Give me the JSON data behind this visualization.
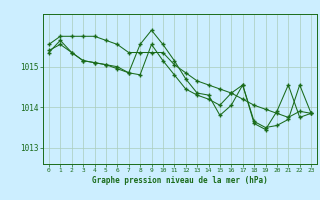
{
  "title": "Graphe pression niveau de la mer (hPa)",
  "bg_color": "#cceeff",
  "plot_bg_color": "#cceeff",
  "grid_color": "#aaccbb",
  "line_color": "#1a6b1a",
  "marker_color": "#1a6b1a",
  "xlabel": "Graphe pression niveau de la mer (hPa)",
  "xlim": [
    -0.5,
    23.5
  ],
  "ylim": [
    1012.6,
    1016.3
  ],
  "yticks": [
    1013,
    1014,
    1015
  ],
  "xticks": [
    0,
    1,
    2,
    3,
    4,
    5,
    6,
    7,
    8,
    9,
    10,
    11,
    12,
    13,
    14,
    15,
    16,
    17,
    18,
    19,
    20,
    21,
    22,
    23
  ],
  "series": [
    [
      1015.55,
      1015.75,
      1015.75,
      1015.75,
      1015.75,
      1015.65,
      1015.55,
      1015.35,
      1015.35,
      1015.35,
      1015.35,
      1015.05,
      1014.85,
      1014.65,
      1014.55,
      1014.45,
      1014.35,
      1014.2,
      1014.05,
      1013.95,
      1013.85,
      1013.75,
      1013.9,
      1013.85
    ],
    [
      1015.4,
      1015.55,
      1015.35,
      1015.15,
      1015.1,
      1015.05,
      1014.95,
      1014.85,
      1015.55,
      1015.9,
      1015.55,
      1015.15,
      1014.7,
      1014.35,
      1014.3,
      1013.8,
      1014.05,
      1014.55,
      1013.6,
      1013.45,
      1013.9,
      1014.55,
      1013.75,
      1013.85
    ],
    [
      1015.35,
      1015.65,
      1015.35,
      1015.15,
      1015.1,
      1015.05,
      1015.0,
      1014.85,
      1014.8,
      1015.55,
      1015.15,
      1014.8,
      1014.45,
      1014.3,
      1014.2,
      1014.05,
      1014.35,
      1014.55,
      1013.65,
      1013.5,
      1013.55,
      1013.7,
      1014.55,
      1013.85
    ]
  ]
}
